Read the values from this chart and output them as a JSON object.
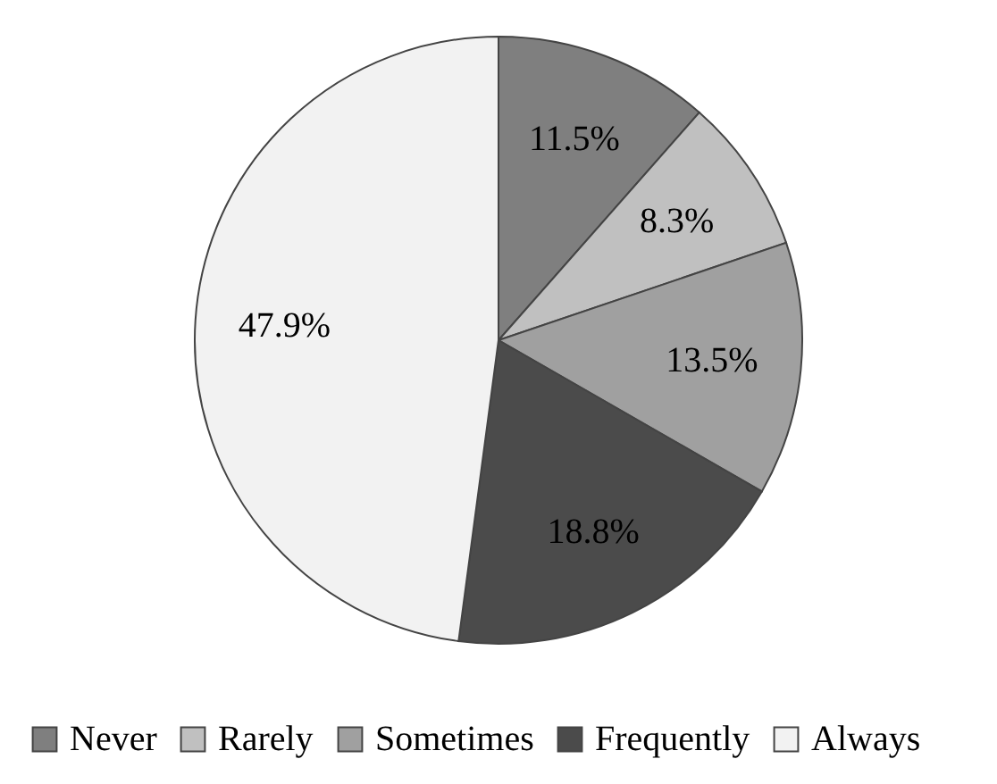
{
  "chart_data": {
    "type": "pie",
    "categories": [
      "Never",
      "Rarely",
      "Sometimes",
      "Frequently",
      "Always"
    ],
    "values": [
      11.5,
      8.3,
      13.5,
      18.8,
      47.9
    ],
    "colors": [
      "#7f7f7f",
      "#c0c0c0",
      "#a0a0a0",
      "#4b4b4b",
      "#f2f2f2"
    ],
    "value_labels": [
      "11.5%",
      "8.3%",
      "13.5%",
      "18.8%",
      "47.9%"
    ],
    "legend": "bottom"
  }
}
